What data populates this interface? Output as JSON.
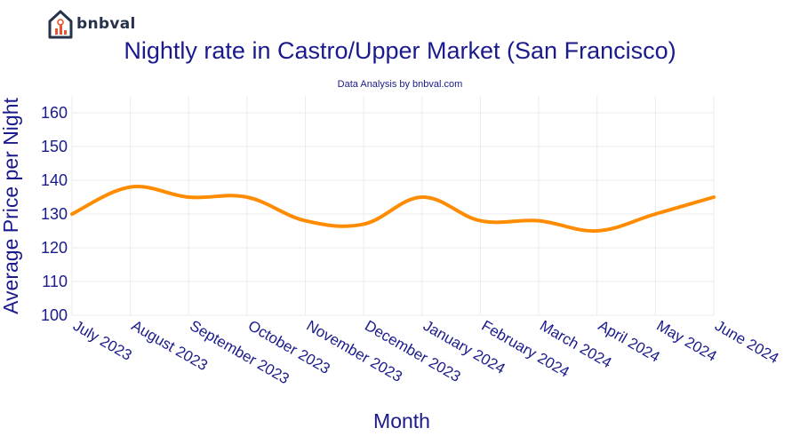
{
  "brand": {
    "name": "bnbval",
    "logo_icon": "house-chart-icon",
    "colors": {
      "dark": "#25324a",
      "accent": "#e8542f"
    }
  },
  "chart_data": {
    "type": "line",
    "title": "Nightly rate in Castro/Upper Market (San Francisco)",
    "subtitle": "Data Analysis by bnbval.com",
    "xlabel": "Month",
    "ylabel": "Average Price per Night",
    "categories": [
      "July 2023",
      "August 2023",
      "September 2023",
      "October 2023",
      "November 2023",
      "December 2023",
      "January 2024",
      "February 2024",
      "March 2024",
      "April 2024",
      "May 2024",
      "June 2024"
    ],
    "series": [
      {
        "values": [
          130,
          138,
          135,
          135,
          128,
          127,
          135,
          128,
          128,
          125,
          130,
          135
        ],
        "color": "#ff8c00"
      }
    ],
    "ylim": [
      100,
      165
    ],
    "yticks": [
      100,
      110,
      120,
      130,
      140,
      150,
      160
    ],
    "grid": true,
    "line_shape": "smooth"
  }
}
